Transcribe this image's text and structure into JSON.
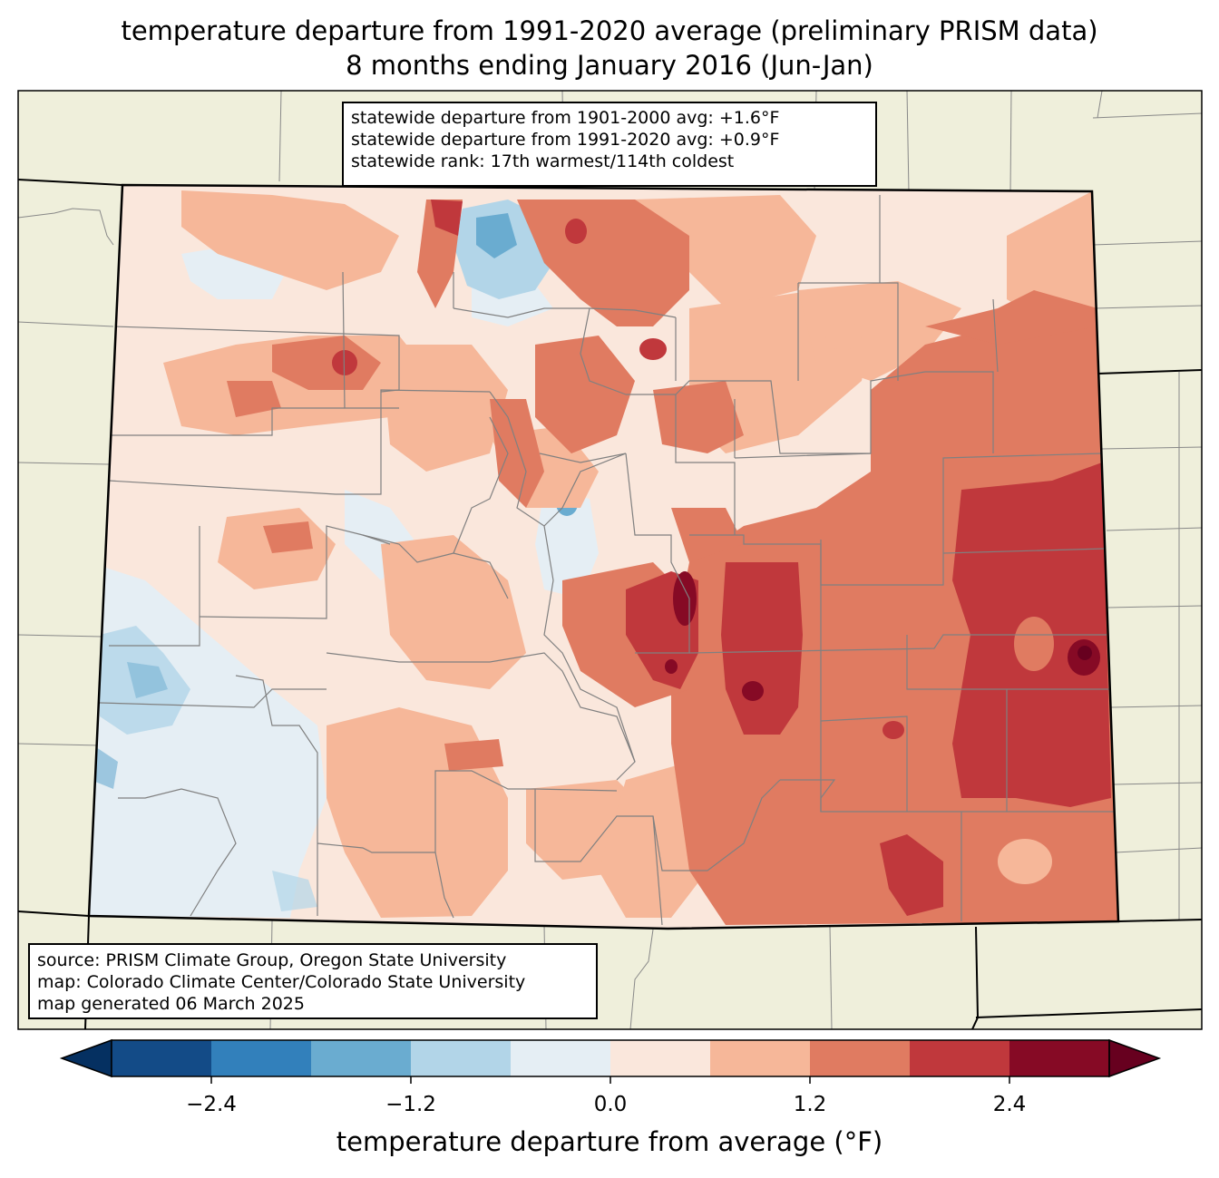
{
  "title": {
    "line1": "temperature departure from 1991-2020 average (preliminary PRISM data)",
    "line2": "8 months ending January 2016 (Jun-Jan)"
  },
  "stats": {
    "line1": "statewide departure from 1901-2000 avg: +1.6°F",
    "line2": "statewide departure from 1991-2020 avg: +0.9°F",
    "line3": "statewide rank: 17th warmest/114th coldest"
  },
  "source": {
    "line1": "source: PRISM Climate Group, Oregon State University",
    "line2": "map: Colorado Climate Center/Colorado State University",
    "line3": "map generated 06 March 2025"
  },
  "colorbar": {
    "label": "temperature departure from average (°F)",
    "ticks": [
      "−2.4",
      "−1.2",
      "0.0",
      "1.2",
      "2.4"
    ],
    "colors": [
      "#053061",
      "#134b87",
      "#3280bb",
      "#6aacd0",
      "#b2d5e8",
      "#e5eef4",
      "#fae7dc",
      "#f6b799",
      "#e07b61",
      "#c0383c",
      "#860a25",
      "#67001f"
    ]
  },
  "map_colors": {
    "background": "#efefdb",
    "light_blue": "#b2d5e8",
    "pale_blue": "#e5eef4",
    "mid_blue": "#6aacd0",
    "pale_pink": "#fae7dc",
    "light_salmon": "#f6b799",
    "salmon": "#e07b61",
    "red": "#c0383c",
    "dark_red": "#860a25",
    "county_lines": "#888888"
  }
}
